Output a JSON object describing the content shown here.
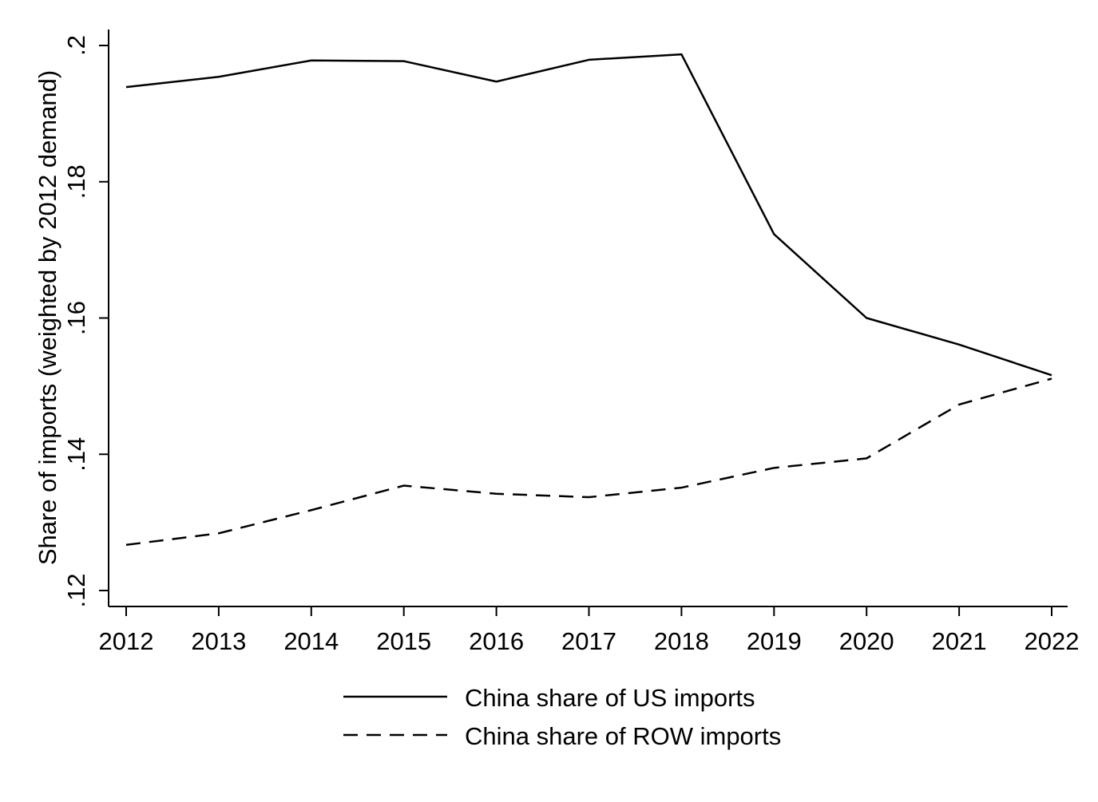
{
  "chart_data": {
    "type": "line",
    "title": "",
    "xlabel": "",
    "ylabel": "Share of imports (weighted by 2012 demand)",
    "x": [
      2012,
      2013,
      2014,
      2015,
      2016,
      2017,
      2018,
      2019,
      2020,
      2021,
      2022
    ],
    "x_tick_labels": [
      "2012",
      "2013",
      "2014",
      "2015",
      "2016",
      "2017",
      "2018",
      "2019",
      "2020",
      "2021",
      "2022"
    ],
    "y_ticks": [
      0.12,
      0.14,
      0.16,
      0.18,
      0.2
    ],
    "y_tick_labels": [
      ".12",
      ".14",
      ".16",
      ".18",
      ".2"
    ],
    "xlim": [
      2011.8,
      2022.2
    ],
    "ylim": [
      0.1177,
      0.2023
    ],
    "grid": false,
    "legend_placement": "bottom",
    "series": [
      {
        "name": "China share of US imports",
        "style": "solid",
        "color": "#000000",
        "values": [
          0.1939,
          0.1954,
          0.1978,
          0.1977,
          0.1947,
          0.1979,
          0.1987,
          0.1723,
          0.16,
          0.1561,
          0.1516
        ]
      },
      {
        "name": "China share of ROW imports",
        "style": "dashed",
        "color": "#000000",
        "values": [
          0.1267,
          0.1284,
          0.1318,
          0.1354,
          0.1342,
          0.1337,
          0.1351,
          0.138,
          0.1394,
          0.1473,
          0.1511
        ]
      }
    ]
  }
}
